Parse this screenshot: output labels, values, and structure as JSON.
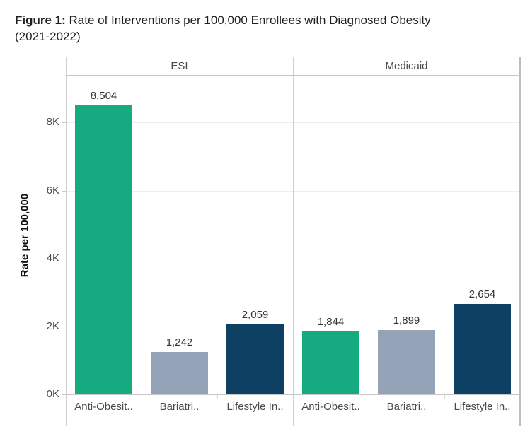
{
  "title": {
    "prefix": "Figure 1:",
    "line1_rest": " Rate of Interventions per 100,000 Enrollees with Diagnosed Obesity",
    "line2": "(2021-2022)",
    "full": "Figure 1: Rate of Interventions per 100,000 Enrollees with Diagnosed Obesity (2021-2022)"
  },
  "chart_data": {
    "type": "bar",
    "title": "Figure 1: Rate of Interventions per 100,000 Enrollees with Diagnosed Obesity (2021-2022)",
    "xlabel": "",
    "ylabel": "Rate per 100,000",
    "ylim": [
      0,
      9380
    ],
    "grid": true,
    "legend": "none",
    "y_ticks": [
      {
        "label": "0K",
        "value": 0
      },
      {
        "label": "2K",
        "value": 2000
      },
      {
        "label": "4K",
        "value": 4000
      },
      {
        "label": "6K",
        "value": 6000
      },
      {
        "label": "8K",
        "value": 8000
      }
    ],
    "bar_colors": [
      "#16AA81",
      "#94A3B8",
      "#0D4063"
    ],
    "panels": [
      {
        "label": "ESI",
        "categories": [
          "Anti-Obesit..",
          "Bariatri..",
          "Lifestyle In.."
        ],
        "values": [
          8504,
          1242,
          2059
        ],
        "value_labels": [
          "8,504",
          "1,242",
          "2,059"
        ]
      },
      {
        "label": "Medicaid",
        "categories": [
          "Anti-Obesit..",
          "Bariatri..",
          "Lifestyle In.."
        ],
        "values": [
          1844,
          1899,
          2654
        ],
        "value_labels": [
          "1,844",
          "1,899",
          "2,654"
        ]
      }
    ]
  }
}
